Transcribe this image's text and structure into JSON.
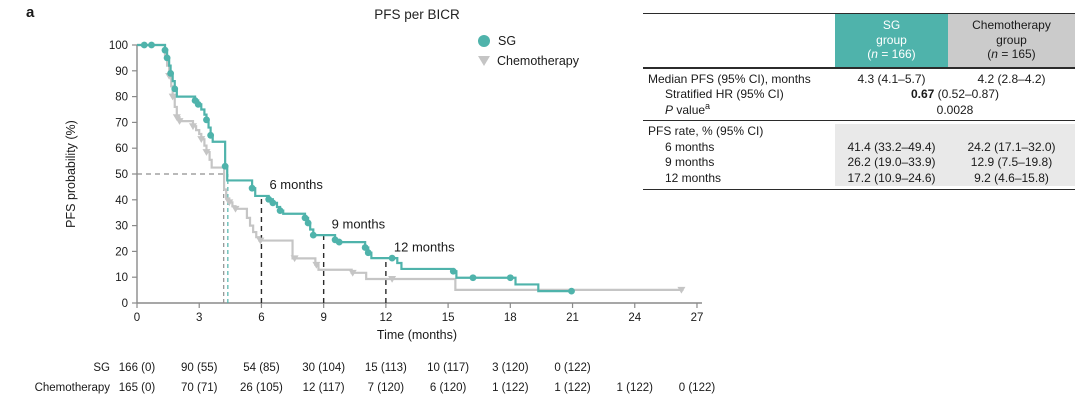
{
  "panel_label": "a",
  "colors": {
    "sg_teal": "#4fb3ab",
    "chemo_gray": "#c5c5c5",
    "chemo_header_bg": "#cbcbcb",
    "rate_section_bg": "#e9e9e9",
    "axis_gray": "#8a8a8a",
    "milestone_dash": "#2b2b2b",
    "median_dash_gray": "#8f8f8f",
    "text": "#1a1a1a"
  },
  "chart_data": {
    "type": "line",
    "subtype": "kaplan-meier-step",
    "title": "PFS per BICR",
    "xlabel": "Time (months)",
    "ylabel": "PFS probability (%)",
    "xlim": [
      0,
      27
    ],
    "ylim": [
      0,
      100
    ],
    "xticks": [
      0,
      3,
      6,
      9,
      12,
      15,
      18,
      21,
      24,
      27
    ],
    "yticks": [
      0,
      10,
      20,
      30,
      40,
      50,
      60,
      70,
      80,
      90,
      100
    ],
    "grid": false,
    "legend_position": "upper-right-of-plot",
    "legend": [
      {
        "label": "SG",
        "marker": "circle",
        "color": "#4fb3ab"
      },
      {
        "label": "Chemotherapy",
        "marker": "triangle-down",
        "color": "#c5c5c5"
      }
    ],
    "series": [
      {
        "name": "SG",
        "color": "#4fb3ab",
        "marker": "circle",
        "median_months": 4.3,
        "points": [
          [
            0,
            100
          ],
          [
            1.3,
            100
          ],
          [
            1.35,
            98
          ],
          [
            1.45,
            95
          ],
          [
            1.55,
            92
          ],
          [
            1.62,
            89
          ],
          [
            1.72,
            86
          ],
          [
            1.82,
            83
          ],
          [
            1.92,
            80
          ],
          [
            2.7,
            80
          ],
          [
            2.8,
            78.5
          ],
          [
            2.95,
            77
          ],
          [
            3.1,
            75
          ],
          [
            3.25,
            73
          ],
          [
            3.35,
            71
          ],
          [
            3.45,
            68
          ],
          [
            3.55,
            65
          ],
          [
            3.65,
            62.5
          ],
          [
            4.15,
            62.5
          ],
          [
            4.25,
            53
          ],
          [
            4.35,
            47.5
          ],
          [
            5.45,
            47.5
          ],
          [
            5.55,
            44.5
          ],
          [
            5.7,
            41.5
          ],
          [
            6.25,
            41.5
          ],
          [
            6.35,
            40.2
          ],
          [
            6.55,
            38.8
          ],
          [
            6.75,
            37.2
          ],
          [
            6.9,
            35.8
          ],
          [
            7.05,
            34.6
          ],
          [
            7.95,
            34.6
          ],
          [
            8.1,
            33
          ],
          [
            8.25,
            31
          ],
          [
            8.35,
            28.5
          ],
          [
            8.5,
            26.3
          ],
          [
            9.45,
            26.3
          ],
          [
            9.55,
            24.5
          ],
          [
            9.75,
            23.6
          ],
          [
            10.9,
            23.6
          ],
          [
            11.0,
            21.5
          ],
          [
            11.15,
            19.5
          ],
          [
            11.3,
            17.4
          ],
          [
            12.45,
            17.4
          ],
          [
            12.55,
            15.5
          ],
          [
            12.75,
            13.2
          ],
          [
            15.15,
            13.2
          ],
          [
            15.25,
            12.3
          ],
          [
            15.4,
            9.8
          ],
          [
            18.1,
            9.8
          ],
          [
            18.25,
            7.2
          ],
          [
            19.25,
            7.2
          ],
          [
            19.35,
            4.6
          ],
          [
            20.95,
            4.6
          ]
        ],
        "censor_marks": [
          [
            0.35,
            100
          ],
          [
            0.7,
            100
          ],
          [
            1.35,
            98
          ],
          [
            1.45,
            95
          ],
          [
            1.62,
            89
          ],
          [
            1.82,
            83
          ],
          [
            2.8,
            78.5
          ],
          [
            2.95,
            77
          ],
          [
            3.35,
            71
          ],
          [
            3.55,
            65
          ],
          [
            4.25,
            53
          ],
          [
            5.55,
            44.5
          ],
          [
            6.35,
            40.2
          ],
          [
            6.55,
            38.8
          ],
          [
            6.9,
            35.8
          ],
          [
            8.1,
            33
          ],
          [
            8.25,
            31
          ],
          [
            8.5,
            26.3
          ],
          [
            9.55,
            24.5
          ],
          [
            9.75,
            23.6
          ],
          [
            11.0,
            21.5
          ],
          [
            11.15,
            19.5
          ],
          [
            12.3,
            17.4
          ],
          [
            15.25,
            12.3
          ],
          [
            16.2,
            9.8
          ],
          [
            18.0,
            9.8
          ],
          [
            20.95,
            4.6
          ]
        ]
      },
      {
        "name": "Chemotherapy",
        "color": "#c5c5c5",
        "marker": "triangle-down",
        "median_months": 4.2,
        "points": [
          [
            0,
            100
          ],
          [
            1.25,
            100
          ],
          [
            1.35,
            96
          ],
          [
            1.45,
            92
          ],
          [
            1.55,
            88
          ],
          [
            1.65,
            84
          ],
          [
            1.72,
            80
          ],
          [
            1.82,
            76
          ],
          [
            1.92,
            72
          ],
          [
            2.05,
            70.5
          ],
          [
            2.55,
            70.5
          ],
          [
            2.7,
            68.5
          ],
          [
            2.85,
            67
          ],
          [
            3.0,
            65.5
          ],
          [
            3.1,
            63.5
          ],
          [
            3.25,
            61
          ],
          [
            3.35,
            58.5
          ],
          [
            3.5,
            55.5
          ],
          [
            3.6,
            52.5
          ],
          [
            4.1,
            52.5
          ],
          [
            4.2,
            44
          ],
          [
            4.3,
            40.5
          ],
          [
            4.45,
            39
          ],
          [
            4.6,
            37.5
          ],
          [
            4.75,
            36.5
          ],
          [
            5.15,
            36.5
          ],
          [
            5.3,
            33
          ],
          [
            5.45,
            30
          ],
          [
            5.6,
            27.5
          ],
          [
            5.75,
            25.5
          ],
          [
            5.9,
            24.2
          ],
          [
            7.4,
            24.2
          ],
          [
            7.5,
            17.3
          ],
          [
            8.45,
            17.3
          ],
          [
            8.6,
            14.8
          ],
          [
            8.75,
            12.9
          ],
          [
            10.25,
            12.9
          ],
          [
            10.35,
            11.7
          ],
          [
            10.95,
            11.7
          ],
          [
            11.05,
            9.3
          ],
          [
            15.25,
            9.3
          ],
          [
            15.35,
            5.1
          ],
          [
            26.35,
            5.1
          ]
        ],
        "censor_marks": [
          [
            1.55,
            88
          ],
          [
            1.72,
            80
          ],
          [
            1.92,
            72
          ],
          [
            2.05,
            70.5
          ],
          [
            2.7,
            68.5
          ],
          [
            3.1,
            63.5
          ],
          [
            3.35,
            58.5
          ],
          [
            4.45,
            39
          ],
          [
            4.75,
            36.5
          ],
          [
            5.95,
            24.2
          ],
          [
            7.6,
            17.3
          ],
          [
            8.65,
            14.8
          ],
          [
            10.4,
            11.7
          ],
          [
            12.3,
            9.3
          ],
          [
            26.25,
            5.1
          ]
        ]
      }
    ],
    "reference_lines": {
      "median_horizontal": {
        "y": 50,
        "x_start": 0,
        "x_end": 4.35,
        "color": "#8f8f8f"
      },
      "median_verticals": [
        {
          "x": 4.18,
          "y_top": 50,
          "color": "#8f8f8f",
          "series": "Chemotherapy"
        },
        {
          "x": 4.38,
          "y_top": 50,
          "color": "#4fb3ab",
          "series": "SG"
        }
      ],
      "milestones": [
        {
          "x": 6,
          "y_top": 41.4,
          "label": "6 months"
        },
        {
          "x": 9,
          "y_top": 26.2,
          "label": "9 months"
        },
        {
          "x": 12,
          "y_top": 17.2,
          "label": "12 months"
        }
      ]
    },
    "at_risk": {
      "times": [
        0,
        3,
        6,
        9,
        12,
        15,
        18,
        21,
        24,
        27
      ],
      "rows": [
        {
          "label": "SG",
          "values": [
            "166 (0)",
            "90 (55)",
            "54 (85)",
            "30 (104)",
            "15 (113)",
            "10 (117)",
            "3 (120)",
            "0 (122)"
          ]
        },
        {
          "label": "Chemotherapy",
          "values": [
            "165 (0)",
            "70 (71)",
            "26 (105)",
            "12 (117)",
            "7 (120)",
            "6 (120)",
            "1 (122)",
            "1 (122)",
            "1 (122)",
            "0 (122)"
          ]
        }
      ]
    }
  },
  "stats_table": {
    "columns": [
      {
        "line1": "SG",
        "line2": "group",
        "n_open": "(",
        "n_label": "n",
        "n_rest": " = 166)",
        "bg": "#4fb3ab",
        "fg": "#ffffff"
      },
      {
        "line1": "Chemotherapy",
        "line2": "group",
        "n_open": "(",
        "n_label": "n",
        "n_rest": " = 165)",
        "bg": "#cbcbcb",
        "fg": "#1a1a1a"
      }
    ],
    "median_row": {
      "label": "Median PFS (95% CI), months",
      "sg": "4.3 (4.1–5.7)",
      "chemo": "4.2 (2.8–4.2)"
    },
    "hr_row": {
      "label": "Stratified HR (95% CI)",
      "value_bold": "0.67",
      "value_rest": " (0.52–0.87)"
    },
    "p_row": {
      "label_italic": "P",
      "label_rest": " value",
      "label_sup": "a",
      "value": "0.0028"
    },
    "rate_section": {
      "label": "PFS rate, % (95% CI)",
      "rows": [
        {
          "label": "6 months",
          "sg": "41.4 (33.2–49.4)",
          "chemo": "24.2 (17.1–32.0)"
        },
        {
          "label": "9 months",
          "sg": "26.2 (19.0–33.9)",
          "chemo": "12.9 (7.5–19.8)"
        },
        {
          "label": "12 months",
          "sg": "17.2 (10.9–24.6)",
          "chemo": "9.2 (4.6–15.8)"
        }
      ]
    }
  }
}
